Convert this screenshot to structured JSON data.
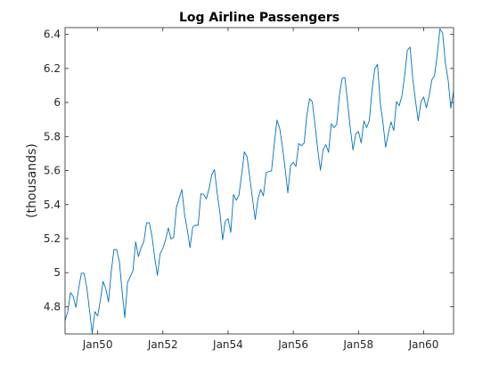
{
  "chart_data": {
    "type": "line",
    "title": "Log Airline Passengers",
    "xlabel": "",
    "ylabel": "(thousands)",
    "start": "Jan49",
    "frequency": "monthly",
    "x_ticks": [
      "Jan50",
      "Jan52",
      "Jan54",
      "Jan56",
      "Jan58",
      "Jan60"
    ],
    "y_ticks": [
      "4.8",
      "5",
      "5.2",
      "5.4",
      "5.6",
      "5.8",
      "6",
      "6.2",
      "6.4"
    ],
    "ylim": [
      4.64,
      6.44
    ],
    "grid": false,
    "line_color": "#0072BD",
    "series": [
      {
        "values": [
          4.718,
          4.771,
          4.883,
          4.86,
          4.796,
          4.905,
          4.997,
          4.997,
          4.913,
          4.779,
          4.644,
          4.771,
          4.745,
          4.836,
          4.949,
          4.905,
          4.828,
          5.004,
          5.136,
          5.136,
          5.063,
          4.89,
          4.736,
          4.942,
          4.977,
          5.011,
          5.182,
          5.094,
          5.147,
          5.182,
          5.293,
          5.293,
          5.215,
          5.088,
          4.984,
          5.112,
          5.142,
          5.193,
          5.263,
          5.198,
          5.209,
          5.384,
          5.438,
          5.489,
          5.342,
          5.252,
          5.147,
          5.268,
          5.279,
          5.278,
          5.464,
          5.46,
          5.434,
          5.493,
          5.576,
          5.606,
          5.468,
          5.352,
          5.193,
          5.303,
          5.318,
          5.236,
          5.46,
          5.425,
          5.455,
          5.576,
          5.71,
          5.68,
          5.557,
          5.434,
          5.313,
          5.434,
          5.489,
          5.451,
          5.587,
          5.595,
          5.598,
          5.753,
          5.897,
          5.849,
          5.743,
          5.613,
          5.468,
          5.628,
          5.649,
          5.624,
          5.759,
          5.746,
          5.762,
          5.924,
          6.023,
          6.004,
          5.872,
          5.724,
          5.602,
          5.724,
          5.753,
          5.707,
          5.875,
          5.852,
          5.872,
          6.045,
          6.142,
          6.146,
          6.001,
          5.849,
          5.72,
          5.817,
          5.829,
          5.762,
          5.892,
          5.852,
          5.894,
          6.075,
          6.196,
          6.225,
          6.001,
          5.883,
          5.737,
          5.82,
          5.886,
          5.835,
          6.006,
          5.981,
          6.04,
          6.157,
          6.306,
          6.326,
          6.138,
          6.009,
          5.892,
          6.004,
          6.033,
          5.969,
          6.038,
          6.133,
          6.157,
          6.282,
          6.433,
          6.407,
          6.23,
          6.133,
          5.966,
          6.068
        ]
      }
    ]
  }
}
